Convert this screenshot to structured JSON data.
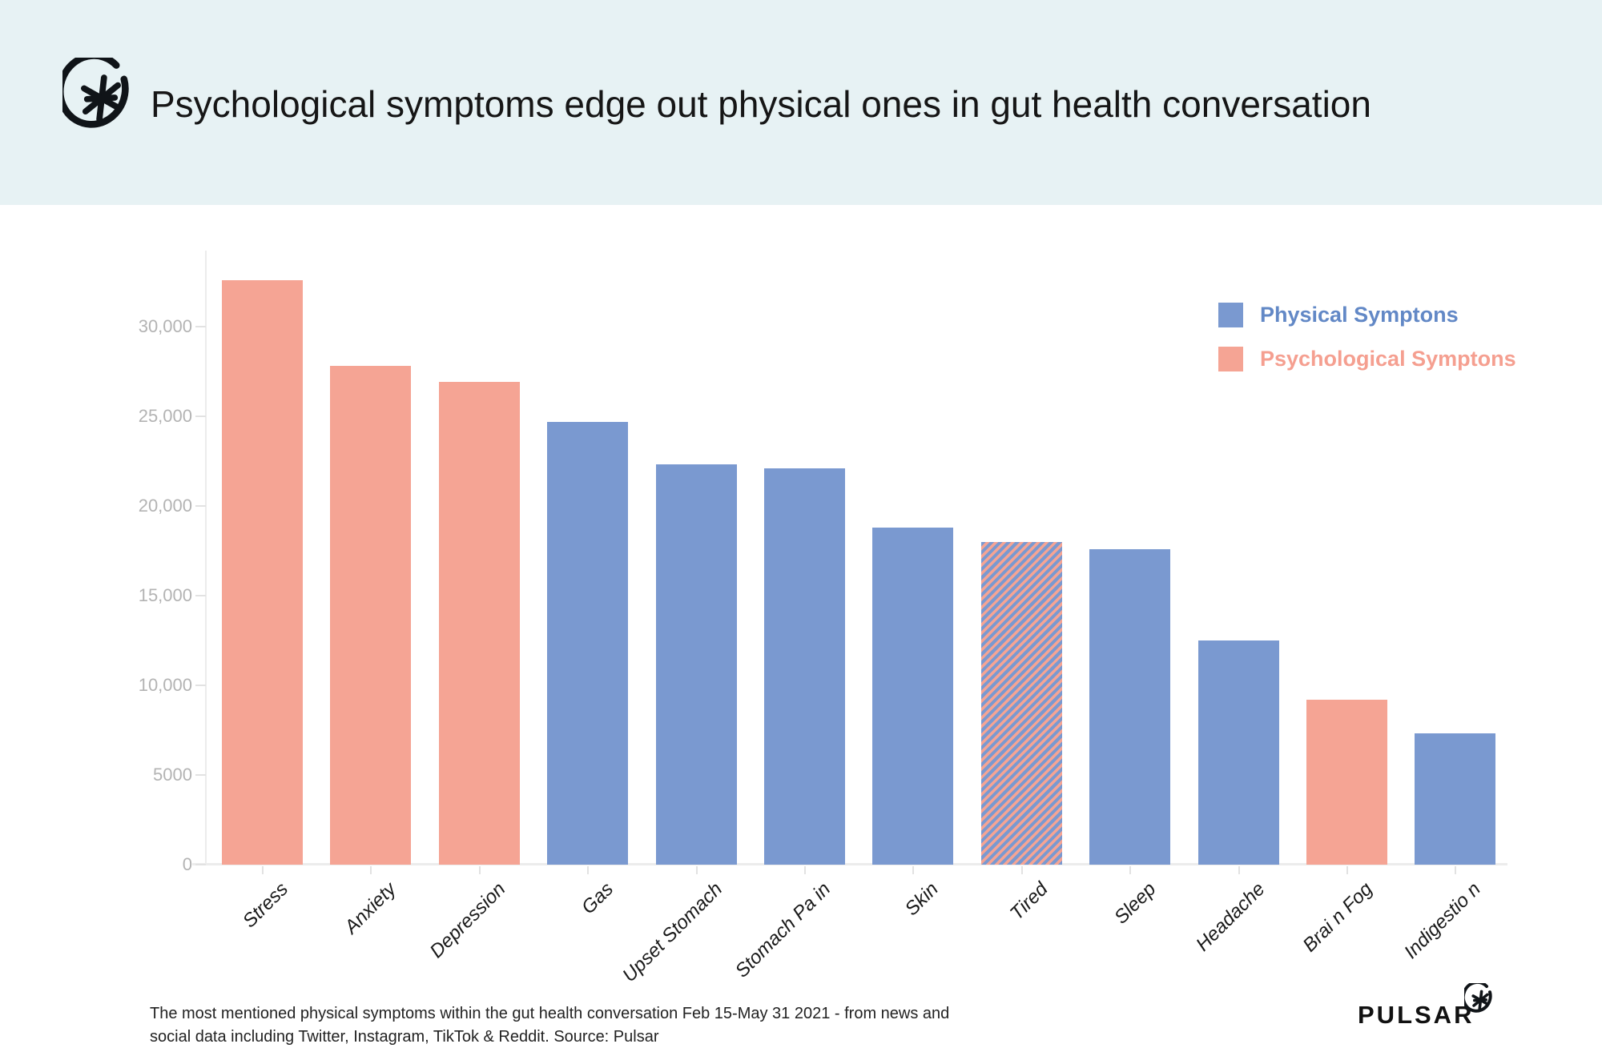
{
  "header": {
    "title": "Psychological symptoms edge out physical ones in gut health conversation"
  },
  "chart_data": {
    "type": "bar",
    "title": "Psychological symptoms edge out physical ones in gut health conversation",
    "categories": [
      "Stress",
      "Anxiety",
      "Depression",
      "Gas",
      "Upset Stomach",
      "Stomach Pa in",
      "Skin",
      "Tired",
      "Sleep",
      "Headache",
      "Brai n Fog",
      "Indigestio n"
    ],
    "values": [
      32600,
      27800,
      26900,
      24700,
      22300,
      22100,
      18800,
      18000,
      17600,
      12500,
      9200,
      7300
    ],
    "category_series": [
      "psychological",
      "psychological",
      "psychological",
      "physical",
      "physical",
      "physical",
      "physical",
      "both",
      "physical",
      "physical",
      "psychological",
      "physical"
    ],
    "series_colors": {
      "physical": "#7a99d0",
      "psychological": "#f5a494"
    },
    "hatched_category": "Tired",
    "xlabel": "",
    "ylabel": "",
    "y_axis": {
      "range": [
        0,
        34000
      ],
      "grid": false,
      "ticks": [
        {
          "value": 0,
          "label": "0"
        },
        {
          "value": 5000,
          "label": "5000"
        },
        {
          "value": 10000,
          "label": "10,000"
        },
        {
          "value": 15000,
          "label": "15,000"
        },
        {
          "value": 20000,
          "label": "20,000"
        },
        {
          "value": 25000,
          "label": "25,000"
        },
        {
          "value": 30000,
          "label": "30,000"
        }
      ]
    },
    "legend": {
      "position": "top-right",
      "entries": [
        {
          "label": "Physical Symptons",
          "color": "#7a99d0",
          "text_color": "#6288c6"
        },
        {
          "label": "Psychological Symptons",
          "color": "#f5a494",
          "text_color": "#f59f90"
        }
      ]
    }
  },
  "footer": {
    "caption_line1": "The most mentioned physical symptoms within the gut health conversation Feb 15-May 31 2021 - from news and",
    "caption_line2": "social data including Twitter, Instagram, TikTok & Reddit. Source: Pulsar",
    "brand": "PULSAR"
  }
}
